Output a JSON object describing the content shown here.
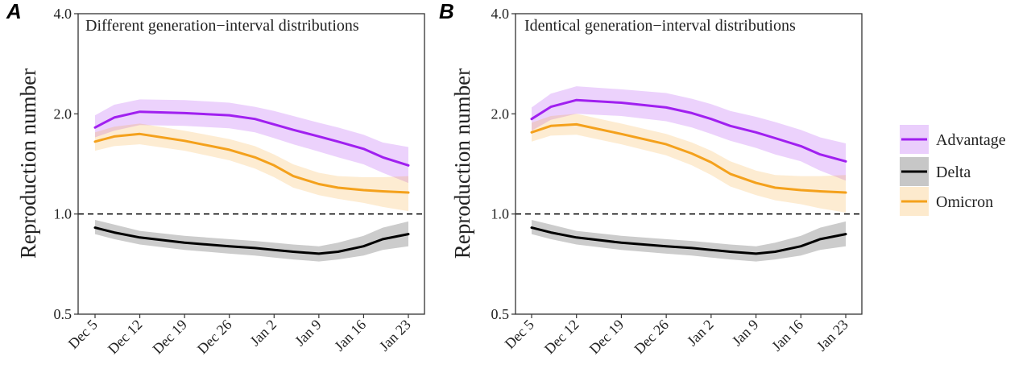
{
  "chart_data": [
    {
      "type": "line",
      "panel_label": "A",
      "title": "Different generation−interval distributions",
      "ylabel": "Reproduction number",
      "xlabel": "",
      "y_scale": "log",
      "ylim": [
        0.5,
        4.0
      ],
      "y_ticks": [
        "0.5",
        "1.0",
        "2.0",
        "4.0"
      ],
      "x_ticks": [
        "Dec 5",
        "Dec 12",
        "Dec 19",
        "Dec 26",
        "Jan 2",
        "Jan 9",
        "Jan 16",
        "Jan 23"
      ],
      "x": [
        "Dec 5",
        "Dec 8",
        "Dec 12",
        "Dec 19",
        "Dec 26",
        "Dec 30",
        "Jan 2",
        "Jan 5",
        "Jan 9",
        "Jan 12",
        "Jan 16",
        "Jan 19",
        "Jan 23"
      ],
      "reference_line": 1.0,
      "series": [
        {
          "name": "Advantage",
          "color": "#a020f0",
          "values": [
            1.82,
            1.95,
            2.03,
            2.01,
            1.98,
            1.93,
            1.86,
            1.79,
            1.71,
            1.65,
            1.57,
            1.48,
            1.4
          ],
          "lower": [
            1.7,
            1.78,
            1.85,
            1.84,
            1.81,
            1.76,
            1.69,
            1.62,
            1.54,
            1.48,
            1.41,
            1.33,
            1.24
          ],
          "upper": [
            1.98,
            2.13,
            2.21,
            2.2,
            2.16,
            2.1,
            2.04,
            1.97,
            1.88,
            1.82,
            1.73,
            1.64,
            1.59
          ]
        },
        {
          "name": "Delta",
          "color": "#000000",
          "values": [
            0.91,
            0.88,
            0.85,
            0.82,
            0.8,
            0.79,
            0.78,
            0.77,
            0.76,
            0.77,
            0.8,
            0.84,
            0.87
          ],
          "lower": [
            0.87,
            0.84,
            0.81,
            0.78,
            0.76,
            0.75,
            0.74,
            0.73,
            0.72,
            0.73,
            0.75,
            0.78,
            0.8
          ],
          "upper": [
            0.96,
            0.93,
            0.89,
            0.86,
            0.84,
            0.83,
            0.82,
            0.81,
            0.8,
            0.82,
            0.86,
            0.91,
            0.95
          ]
        },
        {
          "name": "Omicron",
          "color": "#f4a11c",
          "values": [
            1.65,
            1.71,
            1.74,
            1.66,
            1.56,
            1.48,
            1.4,
            1.3,
            1.23,
            1.2,
            1.18,
            1.17,
            1.16
          ],
          "lower": [
            1.55,
            1.6,
            1.62,
            1.55,
            1.45,
            1.37,
            1.29,
            1.2,
            1.14,
            1.11,
            1.08,
            1.05,
            1.02
          ],
          "upper": [
            1.76,
            1.83,
            1.87,
            1.78,
            1.68,
            1.6,
            1.51,
            1.41,
            1.33,
            1.3,
            1.29,
            1.29,
            1.3
          ]
        }
      ]
    },
    {
      "type": "line",
      "panel_label": "B",
      "title": "Identical generation−interval distributions",
      "ylabel": "Reproduction number",
      "xlabel": "",
      "y_scale": "log",
      "ylim": [
        0.5,
        4.0
      ],
      "y_ticks": [
        "0.5",
        "1.0",
        "2.0",
        "4.0"
      ],
      "x_ticks": [
        "Dec 5",
        "Dec 12",
        "Dec 19",
        "Dec 26",
        "Jan 2",
        "Jan 9",
        "Jan 16",
        "Jan 23"
      ],
      "x": [
        "Dec 5",
        "Dec 8",
        "Dec 12",
        "Dec 19",
        "Dec 26",
        "Dec 30",
        "Jan 2",
        "Jan 5",
        "Jan 9",
        "Jan 12",
        "Jan 16",
        "Jan 19",
        "Jan 23"
      ],
      "reference_line": 1.0,
      "series": [
        {
          "name": "Advantage",
          "color": "#a020f0",
          "values": [
            1.93,
            2.1,
            2.2,
            2.16,
            2.09,
            2.01,
            1.93,
            1.84,
            1.76,
            1.69,
            1.6,
            1.51,
            1.44
          ],
          "lower": [
            1.78,
            1.92,
            2.0,
            1.97,
            1.9,
            1.82,
            1.74,
            1.66,
            1.58,
            1.51,
            1.44,
            1.35,
            1.26
          ],
          "upper": [
            2.09,
            2.3,
            2.42,
            2.37,
            2.31,
            2.22,
            2.14,
            2.04,
            1.96,
            1.89,
            1.79,
            1.7,
            1.63
          ]
        },
        {
          "name": "Delta",
          "color": "#000000",
          "values": [
            0.91,
            0.88,
            0.85,
            0.82,
            0.8,
            0.79,
            0.78,
            0.77,
            0.76,
            0.77,
            0.8,
            0.84,
            0.87
          ],
          "lower": [
            0.87,
            0.84,
            0.81,
            0.78,
            0.76,
            0.75,
            0.74,
            0.73,
            0.72,
            0.73,
            0.75,
            0.78,
            0.8
          ],
          "upper": [
            0.96,
            0.93,
            0.89,
            0.86,
            0.84,
            0.83,
            0.82,
            0.81,
            0.8,
            0.82,
            0.86,
            0.91,
            0.95
          ]
        },
        {
          "name": "Omicron",
          "color": "#f4a11c",
          "values": [
            1.76,
            1.84,
            1.86,
            1.74,
            1.62,
            1.52,
            1.43,
            1.32,
            1.24,
            1.2,
            1.18,
            1.17,
            1.16
          ],
          "lower": [
            1.65,
            1.72,
            1.73,
            1.62,
            1.5,
            1.4,
            1.31,
            1.21,
            1.14,
            1.1,
            1.07,
            1.04,
            1.01
          ],
          "upper": [
            1.88,
            1.97,
            2.0,
            1.87,
            1.74,
            1.64,
            1.55,
            1.44,
            1.35,
            1.31,
            1.3,
            1.3,
            1.31
          ]
        }
      ]
    }
  ],
  "legend": {
    "placement": "right",
    "entries": [
      {
        "label": "Advantage",
        "color": "#a020f0"
      },
      {
        "label": "Delta",
        "color": "#000000"
      },
      {
        "label": "Omicron",
        "color": "#f4a11c"
      }
    ]
  }
}
